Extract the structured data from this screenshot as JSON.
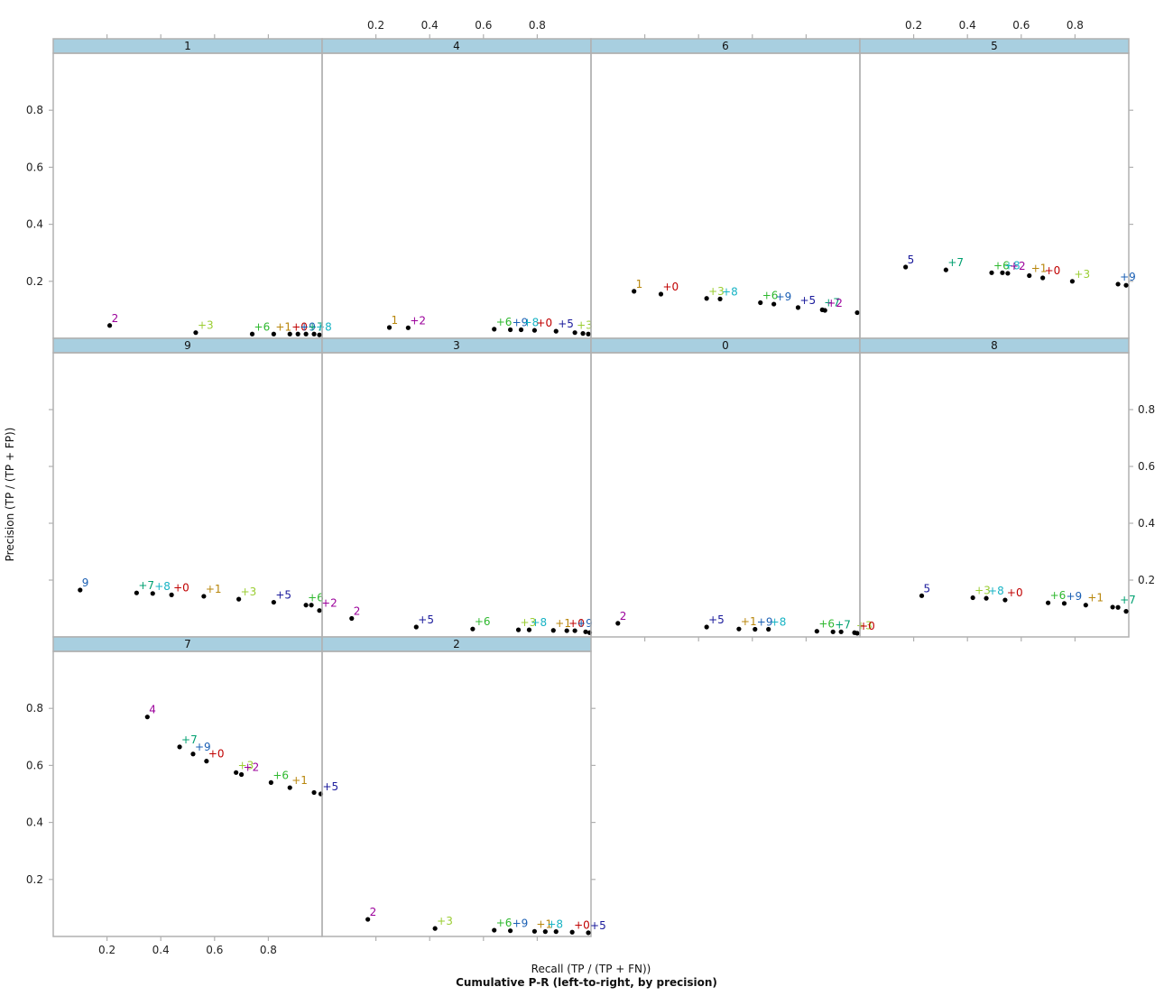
{
  "chart_data": {
    "type": "scatter",
    "title": "Cumulative P-R (left-to-right, by precision)",
    "xlabel": "Recall (TP / (TP + FN))",
    "ylabel": "Precision (TP / (TP + FP))",
    "xlim": [
      0,
      1
    ],
    "ylim": [
      0,
      1
    ],
    "x_ticks": [
      0.2,
      0.4,
      0.6,
      0.8
    ],
    "y_ticks": [
      0.2,
      0.4,
      0.6,
      0.8
    ],
    "grid": false,
    "point_color": "#000000",
    "strip_color": "#a8cfe0",
    "frame_color": "#b0b0b0",
    "label_colors": {
      "0": "#c00000",
      "1": "#b8860b",
      "2": "#9b009b",
      "3": "#9acd32",
      "4": "#9b009b",
      "5": "#1a1a9b",
      "6": "#2eb82e",
      "7": "#00a070",
      "8": "#17b3c4",
      "9": "#1a5fb4"
    },
    "panels": [
      {
        "name": "1",
        "points": [
          {
            "x": 0.21,
            "y": 0.045,
            "label": "2"
          },
          {
            "x": 0.53,
            "y": 0.02,
            "label": "+3"
          },
          {
            "x": 0.74,
            "y": 0.015,
            "label": "+6"
          },
          {
            "x": 0.82,
            "y": 0.015,
            "label": "+1"
          },
          {
            "x": 0.88,
            "y": 0.015,
            "label": "+0"
          },
          {
            "x": 0.91,
            "y": 0.015,
            "label": "+9"
          },
          {
            "x": 0.94,
            "y": 0.015,
            "label": "+7"
          },
          {
            "x": 0.97,
            "y": 0.015,
            "label": "+8"
          },
          {
            "x": 0.99,
            "y": 0.012,
            "label": ""
          }
        ]
      },
      {
        "name": "4",
        "points": [
          {
            "x": 0.25,
            "y": 0.038,
            "label": "1"
          },
          {
            "x": 0.32,
            "y": 0.037,
            "label": "+2"
          },
          {
            "x": 0.64,
            "y": 0.032,
            "label": "+6"
          },
          {
            "x": 0.7,
            "y": 0.03,
            "label": "+9"
          },
          {
            "x": 0.74,
            "y": 0.03,
            "label": "+8"
          },
          {
            "x": 0.79,
            "y": 0.028,
            "label": "+0"
          },
          {
            "x": 0.87,
            "y": 0.025,
            "label": "+5"
          },
          {
            "x": 0.94,
            "y": 0.02,
            "label": "+3"
          },
          {
            "x": 0.97,
            "y": 0.017,
            "label": ""
          },
          {
            "x": 0.99,
            "y": 0.015,
            "label": ""
          }
        ]
      },
      {
        "name": "6",
        "points": [
          {
            "x": 0.16,
            "y": 0.165,
            "label": "1"
          },
          {
            "x": 0.26,
            "y": 0.155,
            "label": "+0"
          },
          {
            "x": 0.43,
            "y": 0.14,
            "label": "+3"
          },
          {
            "x": 0.48,
            "y": 0.138,
            "label": "+8"
          },
          {
            "x": 0.63,
            "y": 0.125,
            "label": "+6"
          },
          {
            "x": 0.68,
            "y": 0.12,
            "label": "+9"
          },
          {
            "x": 0.77,
            "y": 0.108,
            "label": "+5"
          },
          {
            "x": 0.86,
            "y": 0.1,
            "label": "+7"
          },
          {
            "x": 0.87,
            "y": 0.098,
            "label": "+2"
          },
          {
            "x": 0.99,
            "y": 0.09,
            "label": ""
          }
        ]
      },
      {
        "name": "5",
        "points": [
          {
            "x": 0.17,
            "y": 0.25,
            "label": "5"
          },
          {
            "x": 0.32,
            "y": 0.24,
            "label": "+7"
          },
          {
            "x": 0.49,
            "y": 0.23,
            "label": "+6"
          },
          {
            "x": 0.53,
            "y": 0.23,
            "label": "+8"
          },
          {
            "x": 0.55,
            "y": 0.228,
            "label": "+2"
          },
          {
            "x": 0.63,
            "y": 0.22,
            "label": "+1"
          },
          {
            "x": 0.68,
            "y": 0.212,
            "label": "+0"
          },
          {
            "x": 0.79,
            "y": 0.2,
            "label": "+3"
          },
          {
            "x": 0.96,
            "y": 0.19,
            "label": "+9"
          },
          {
            "x": 0.99,
            "y": 0.186,
            "label": ""
          }
        ]
      },
      {
        "name": "9",
        "points": [
          {
            "x": 0.1,
            "y": 0.165,
            "label": "9"
          },
          {
            "x": 0.31,
            "y": 0.155,
            "label": "+7"
          },
          {
            "x": 0.37,
            "y": 0.153,
            "label": "+8"
          },
          {
            "x": 0.44,
            "y": 0.148,
            "label": "+0"
          },
          {
            "x": 0.56,
            "y": 0.143,
            "label": "+1"
          },
          {
            "x": 0.69,
            "y": 0.133,
            "label": "+3"
          },
          {
            "x": 0.82,
            "y": 0.122,
            "label": "+5"
          },
          {
            "x": 0.94,
            "y": 0.112,
            "label": "+6"
          },
          {
            "x": 0.96,
            "y": 0.112,
            "label": ""
          },
          {
            "x": 0.99,
            "y": 0.093,
            "label": "+2"
          }
        ]
      },
      {
        "name": "3",
        "points": [
          {
            "x": 0.11,
            "y": 0.065,
            "label": "2"
          },
          {
            "x": 0.35,
            "y": 0.035,
            "label": "+5"
          },
          {
            "x": 0.56,
            "y": 0.028,
            "label": "+6"
          },
          {
            "x": 0.73,
            "y": 0.025,
            "label": "+3"
          },
          {
            "x": 0.77,
            "y": 0.025,
            "label": "+8"
          },
          {
            "x": 0.86,
            "y": 0.023,
            "label": "+1"
          },
          {
            "x": 0.91,
            "y": 0.022,
            "label": "+0"
          },
          {
            "x": 0.94,
            "y": 0.022,
            "label": "+9"
          },
          {
            "x": 0.98,
            "y": 0.018,
            "label": ""
          },
          {
            "x": 0.995,
            "y": 0.015,
            "label": ""
          }
        ]
      },
      {
        "name": "0",
        "points": [
          {
            "x": 0.1,
            "y": 0.048,
            "label": "2"
          },
          {
            "x": 0.43,
            "y": 0.035,
            "label": "+5"
          },
          {
            "x": 0.55,
            "y": 0.028,
            "label": "+1"
          },
          {
            "x": 0.61,
            "y": 0.027,
            "label": "+9"
          },
          {
            "x": 0.66,
            "y": 0.027,
            "label": "+8"
          },
          {
            "x": 0.84,
            "y": 0.02,
            "label": "+6"
          },
          {
            "x": 0.9,
            "y": 0.018,
            "label": "+7"
          },
          {
            "x": 0.93,
            "y": 0.018,
            "label": ""
          },
          {
            "x": 0.98,
            "y": 0.015,
            "label": "+3"
          },
          {
            "x": 0.99,
            "y": 0.013,
            "label": "+0"
          }
        ]
      },
      {
        "name": "8",
        "points": [
          {
            "x": 0.23,
            "y": 0.145,
            "label": "5"
          },
          {
            "x": 0.42,
            "y": 0.138,
            "label": "+3"
          },
          {
            "x": 0.47,
            "y": 0.136,
            "label": "+8"
          },
          {
            "x": 0.54,
            "y": 0.13,
            "label": "+0"
          },
          {
            "x": 0.7,
            "y": 0.12,
            "label": "+6"
          },
          {
            "x": 0.76,
            "y": 0.118,
            "label": "+9"
          },
          {
            "x": 0.84,
            "y": 0.112,
            "label": "+1"
          },
          {
            "x": 0.94,
            "y": 0.105,
            "label": ""
          },
          {
            "x": 0.96,
            "y": 0.104,
            "label": "+7"
          },
          {
            "x": 0.99,
            "y": 0.09,
            "label": ""
          }
        ]
      },
      {
        "name": "7",
        "points": [
          {
            "x": 0.35,
            "y": 0.77,
            "label": "4"
          },
          {
            "x": 0.47,
            "y": 0.665,
            "label": "+7"
          },
          {
            "x": 0.52,
            "y": 0.64,
            "label": "+9"
          },
          {
            "x": 0.57,
            "y": 0.615,
            "label": "+0"
          },
          {
            "x": 0.68,
            "y": 0.575,
            "label": "+3"
          },
          {
            "x": 0.7,
            "y": 0.568,
            "label": "+2"
          },
          {
            "x": 0.81,
            "y": 0.54,
            "label": "+6"
          },
          {
            "x": 0.88,
            "y": 0.522,
            "label": "+1"
          },
          {
            "x": 0.97,
            "y": 0.505,
            "label": ""
          },
          {
            "x": 0.995,
            "y": 0.5,
            "label": "+5"
          }
        ]
      },
      {
        "name": "2",
        "points": [
          {
            "x": 0.17,
            "y": 0.06,
            "label": "2"
          },
          {
            "x": 0.42,
            "y": 0.028,
            "label": "+3"
          },
          {
            "x": 0.64,
            "y": 0.022,
            "label": "+6"
          },
          {
            "x": 0.7,
            "y": 0.02,
            "label": "+9"
          },
          {
            "x": 0.79,
            "y": 0.018,
            "label": "+1"
          },
          {
            "x": 0.83,
            "y": 0.017,
            "label": "+8"
          },
          {
            "x": 0.87,
            "y": 0.017,
            "label": ""
          },
          {
            "x": 0.93,
            "y": 0.015,
            "label": "+0"
          },
          {
            "x": 0.99,
            "y": 0.013,
            "label": "+5"
          }
        ]
      }
    ]
  }
}
